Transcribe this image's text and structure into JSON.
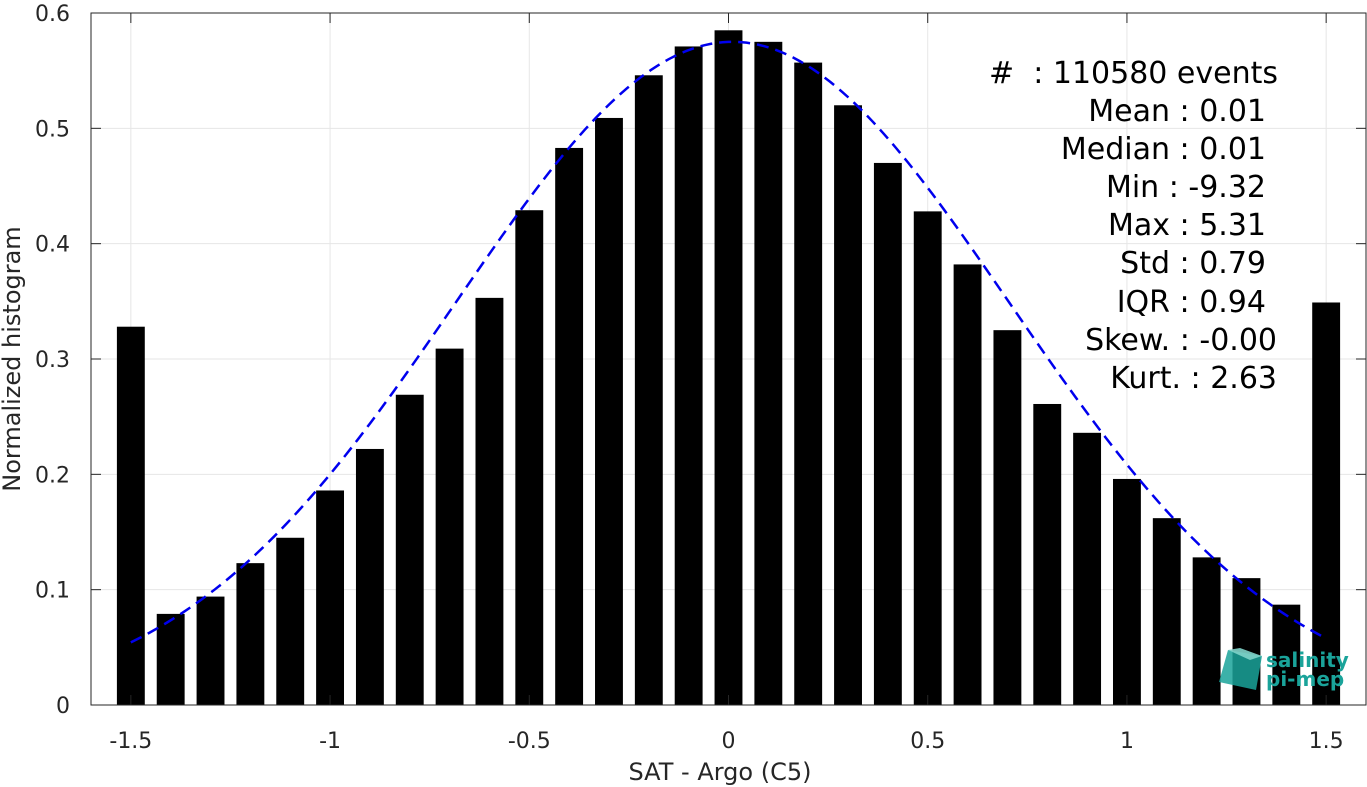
{
  "chart_data": {
    "type": "bar",
    "title": "",
    "xlabel": "SAT - Argo (C5)",
    "ylabel": "Normalized histogram",
    "xlim": [
      -1.6,
      1.6
    ],
    "ylim": [
      0,
      0.6
    ],
    "grid": true,
    "x_ticks": [
      -1.5,
      -1,
      -0.5,
      0,
      0.5,
      1,
      1.5
    ],
    "x_tick_labels": [
      "-1.5",
      "-1",
      "-0.5",
      "0",
      "0.5",
      "1",
      "1.5"
    ],
    "y_ticks": [
      0,
      0.1,
      0.2,
      0.3,
      0.4,
      0.5,
      0.6
    ],
    "y_tick_labels": [
      "0",
      "0.1",
      "0.2",
      "0.3",
      "0.4",
      "0.5",
      "0.6"
    ],
    "bar_color": "#000000",
    "x": [
      -1.5,
      -1.4,
      -1.3,
      -1.2,
      -1.1,
      -1.0,
      -0.9,
      -0.8,
      -0.7,
      -0.6,
      -0.5,
      -0.4,
      -0.3,
      -0.2,
      -0.1,
      0.0,
      0.1,
      0.2,
      0.3,
      0.4,
      0.5,
      0.6,
      0.7,
      0.8,
      0.9,
      1.0,
      1.1,
      1.2,
      1.3,
      1.4,
      1.5
    ],
    "values": [
      0.328,
      0.079,
      0.094,
      0.123,
      0.145,
      0.186,
      0.222,
      0.269,
      0.309,
      0.353,
      0.429,
      0.483,
      0.509,
      0.546,
      0.571,
      0.585,
      0.575,
      0.557,
      0.52,
      0.47,
      0.428,
      0.382,
      0.325,
      0.261,
      0.236,
      0.196,
      0.162,
      0.128,
      0.11,
      0.087,
      0.349
    ],
    "fit_curve": {
      "type": "gaussian",
      "color": "#0000ee",
      "style": "dashed",
      "peak": 0.575,
      "mean": 0.01,
      "std": 0.695,
      "x_range": [
        -1.5,
        1.5
      ]
    },
    "annotations": [
      {
        "label": "#  ",
        "value": "110580 events"
      },
      {
        "label": "Mean",
        "value": "0.01"
      },
      {
        "label": "Median",
        "value": "0.01"
      },
      {
        "label": "Min",
        "value": "-9.32"
      },
      {
        "label": "Max",
        "value": "5.31"
      },
      {
        "label": "Std",
        "value": "0.79"
      },
      {
        "label": "IQR",
        "value": "0.94"
      },
      {
        "label": "Skew.",
        "value": "-0.00"
      },
      {
        "label": "Kurt.",
        "value": "2.63"
      }
    ]
  },
  "stats": {
    "count": "#  : 110580 events",
    "mean": "Mean : 0.01",
    "median": "Median : 0.01",
    "min": "Min : -9.32",
    "max": "Max : 5.31",
    "std": "Std : 0.79",
    "iqr": "IQR : 0.94",
    "skew": "Skew. : -0.00",
    "kurt": "Kurt. : 2.63"
  },
  "logo": {
    "line1": "salinity",
    "line2": "pi-mep",
    "color": "#1aa39a",
    "icon": "cube-logo-icon"
  }
}
